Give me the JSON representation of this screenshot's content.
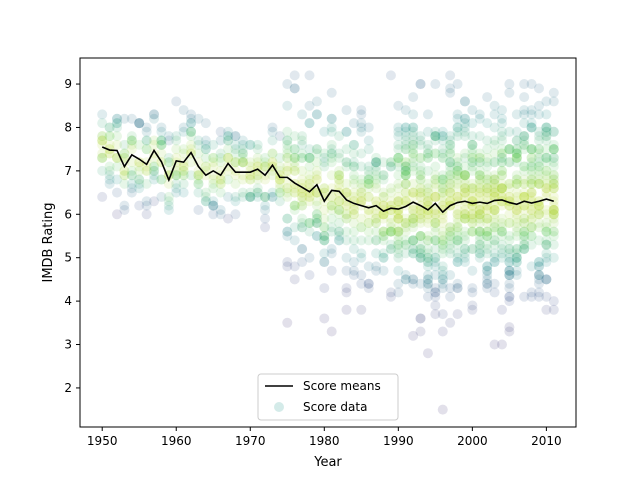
{
  "chart_data": {
    "type": "scatter",
    "title": "",
    "xlabel": "Year",
    "ylabel": "IMDB Rating",
    "xlim": [
      1947,
      2014
    ],
    "ylim": [
      1.1,
      9.6
    ],
    "grid": false,
    "legend_placement": "bottom-center",
    "xticks": [
      1950,
      1960,
      1970,
      1980,
      1990,
      2000,
      2010
    ],
    "yticks": [
      2,
      3,
      4,
      5,
      6,
      7,
      8,
      9
    ],
    "colors": {
      "mean_line": "#000000",
      "scatter_colormap": "viridis"
    },
    "series": [
      {
        "name": "Score means",
        "type": "line",
        "x": [
          1950,
          1951,
          1952,
          1953,
          1954,
          1955,
          1956,
          1957,
          1958,
          1959,
          1960,
          1961,
          1962,
          1963,
          1964,
          1965,
          1966,
          1967,
          1968,
          1969,
          1970,
          1971,
          1972,
          1973,
          1974,
          1975,
          1976,
          1977,
          1978,
          1979,
          1980,
          1981,
          1982,
          1983,
          1984,
          1985,
          1986,
          1987,
          1988,
          1989,
          1990,
          1991,
          1992,
          1993,
          1994,
          1995,
          1996,
          1997,
          1998,
          1999,
          2000,
          2001,
          2002,
          2003,
          2004,
          2005,
          2006,
          2007,
          2008,
          2009,
          2010,
          2011
        ],
        "y": [
          7.55,
          7.48,
          7.47,
          7.1,
          7.37,
          7.27,
          7.15,
          7.47,
          7.21,
          6.79,
          7.23,
          7.2,
          7.42,
          7.1,
          6.9,
          7.0,
          6.9,
          7.17,
          6.97,
          6.97,
          6.97,
          7.04,
          6.9,
          7.13,
          6.85,
          6.85,
          6.72,
          6.62,
          6.52,
          6.68,
          6.3,
          6.55,
          6.53,
          6.33,
          6.25,
          6.2,
          6.15,
          6.2,
          6.07,
          6.14,
          6.12,
          6.18,
          6.28,
          6.2,
          6.1,
          6.25,
          6.05,
          6.2,
          6.27,
          6.3,
          6.25,
          6.28,
          6.25,
          6.32,
          6.33,
          6.27,
          6.23,
          6.3,
          6.26,
          6.3,
          6.35,
          6.3
        ]
      },
      {
        "name": "Score data",
        "type": "scatter",
        "alpha": 0.15,
        "note_density": "density-colored points, approx. distribution per year",
        "x": [],
        "y": []
      }
    ]
  }
}
